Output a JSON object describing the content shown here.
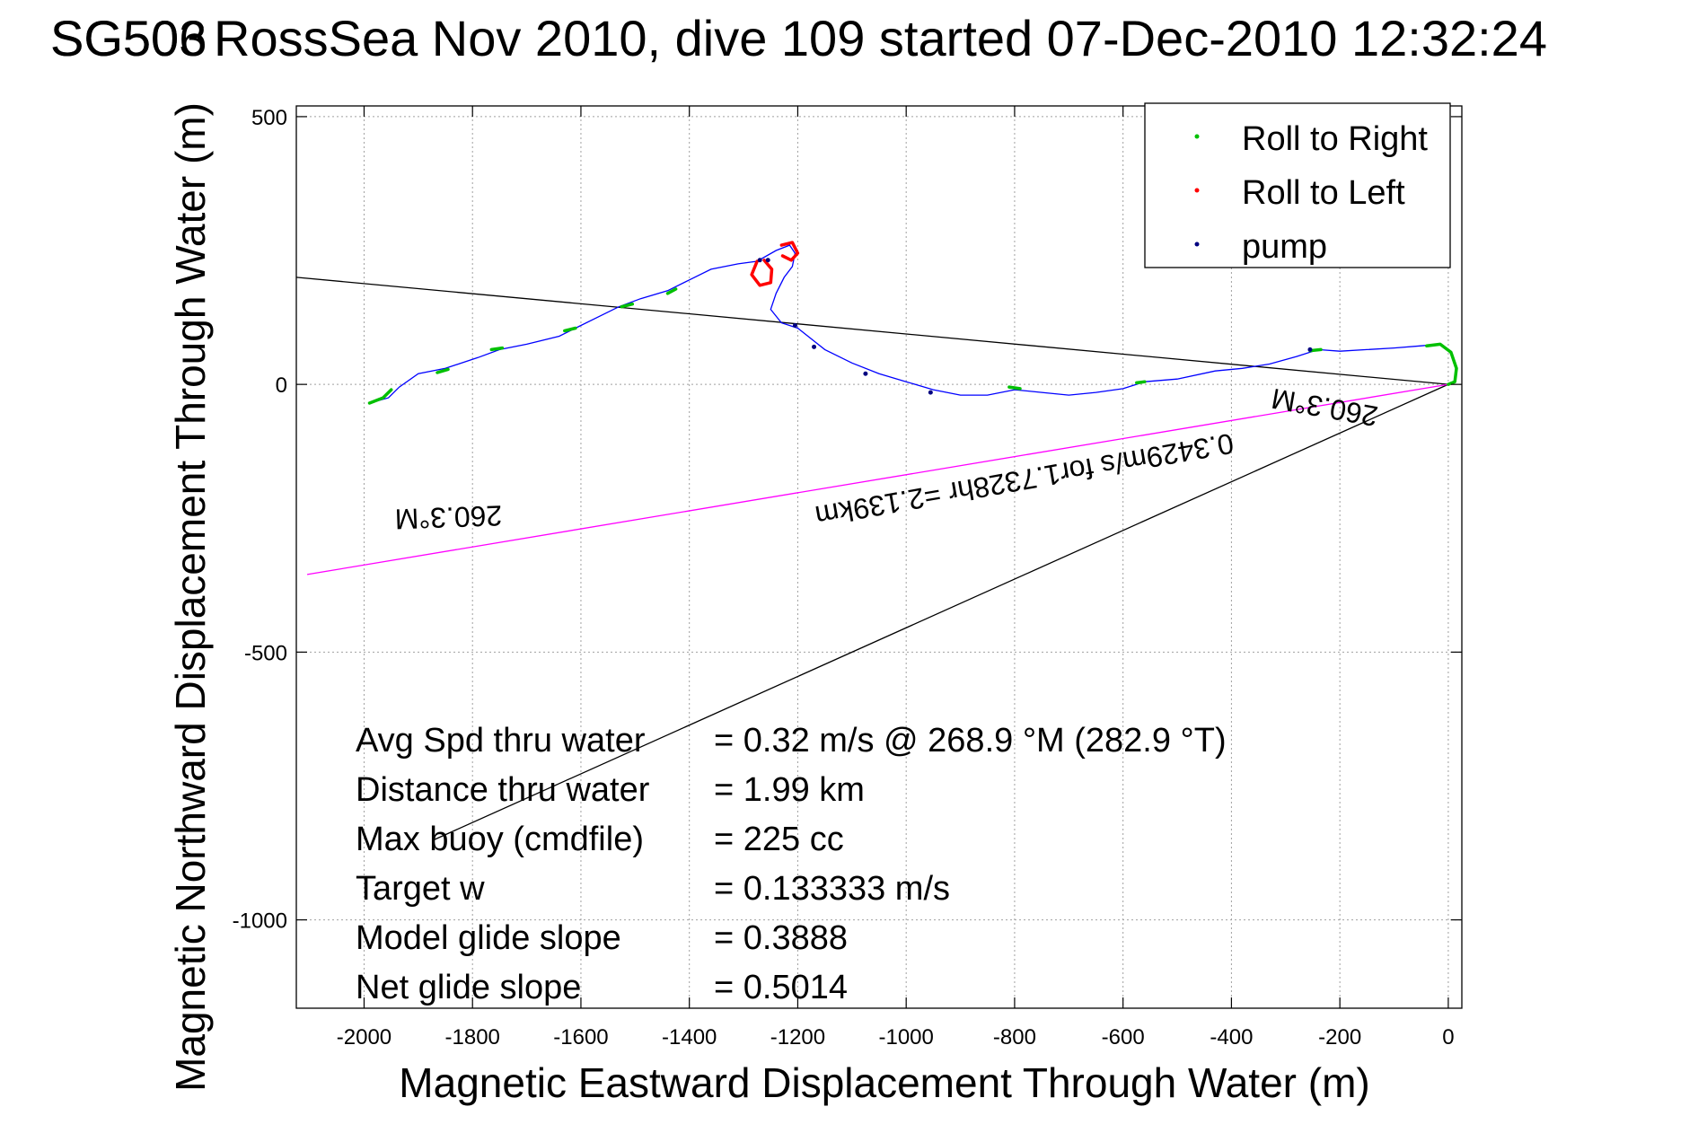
{
  "chart_data": {
    "type": "line",
    "title_a": "SG503",
    "title_b": "SG506",
    "title_rest": " RossSea Nov 2010, dive 109 started 07-Dec-2010 12:32:24",
    "xlabel": "Magnetic Eastward Displacement Through Water (m)",
    "ylabel": "Magnetic Northward Displacement Through Water (m)",
    "xlim": [
      -2125,
      25
    ],
    "ylim": [
      -1165,
      520
    ],
    "xticks": [
      -2000,
      -1800,
      -1600,
      -1400,
      -1200,
      -1000,
      -800,
      -600,
      -400,
      -200,
      0
    ],
    "yticks": [
      500,
      0,
      -500,
      -1000
    ],
    "grid": true,
    "legend_position": "top-right",
    "legend": [
      {
        "label": "Roll to Right",
        "color": "#00c000"
      },
      {
        "label": "Roll to Left",
        "color": "#ff0000"
      },
      {
        "label": "pump",
        "color": "#000080"
      }
    ],
    "track": {
      "name": "track",
      "color": "#0000ff",
      "points": [
        [
          -1990,
          -35
        ],
        [
          -1955,
          -25
        ],
        [
          -1935,
          -5
        ],
        [
          -1900,
          20
        ],
        [
          -1850,
          30
        ],
        [
          -1790,
          50
        ],
        [
          -1750,
          65
        ],
        [
          -1700,
          75
        ],
        [
          -1640,
          90
        ],
        [
          -1610,
          105
        ],
        [
          -1570,
          125
        ],
        [
          -1530,
          145
        ],
        [
          -1490,
          160
        ],
        [
          -1440,
          175
        ],
        [
          -1400,
          195
        ],
        [
          -1360,
          215
        ],
        [
          -1310,
          225
        ],
        [
          -1275,
          230
        ],
        [
          -1240,
          250
        ],
        [
          -1215,
          260
        ],
        [
          -1205,
          245
        ],
        [
          -1210,
          220
        ],
        [
          -1225,
          200
        ],
        [
          -1240,
          170
        ],
        [
          -1250,
          140
        ],
        [
          -1230,
          115
        ],
        [
          -1200,
          105
        ],
        [
          -1150,
          65
        ],
        [
          -1100,
          40
        ],
        [
          -1050,
          20
        ],
        [
          -1000,
          5
        ],
        [
          -950,
          -10
        ],
        [
          -900,
          -20
        ],
        [
          -850,
          -20
        ],
        [
          -800,
          -10
        ],
        [
          -750,
          -15
        ],
        [
          -700,
          -20
        ],
        [
          -650,
          -15
        ],
        [
          -600,
          -8
        ],
        [
          -560,
          5
        ],
        [
          -500,
          10
        ],
        [
          -430,
          25
        ],
        [
          -380,
          30
        ],
        [
          -330,
          38
        ],
        [
          -280,
          52
        ],
        [
          -240,
          65
        ],
        [
          -200,
          62
        ],
        [
          -150,
          65
        ],
        [
          -100,
          68
        ],
        [
          -50,
          72
        ],
        [
          -15,
          75
        ],
        [
          5,
          60
        ],
        [
          15,
          30
        ],
        [
          12,
          5
        ],
        [
          0,
          0
        ]
      ]
    },
    "roll_right_segments": [
      [
        [
          -1990,
          -35
        ],
        [
          -1965,
          -25
        ],
        [
          -1950,
          -10
        ]
      ],
      [
        [
          -1865,
          22
        ],
        [
          -1845,
          28
        ]
      ],
      [
        [
          -1765,
          65
        ],
        [
          -1745,
          68
        ]
      ],
      [
        [
          -1630,
          100
        ],
        [
          -1610,
          105
        ]
      ],
      [
        [
          -1525,
          145
        ],
        [
          -1505,
          150
        ]
      ],
      [
        [
          -1440,
          170
        ],
        [
          -1425,
          178
        ]
      ],
      [
        [
          -810,
          -5
        ],
        [
          -790,
          -8
        ]
      ],
      [
        [
          -575,
          3
        ],
        [
          -560,
          5
        ]
      ],
      [
        [
          -255,
          63
        ],
        [
          -235,
          65
        ]
      ],
      [
        [
          -40,
          72
        ],
        [
          -15,
          75
        ],
        [
          5,
          60
        ],
        [
          15,
          30
        ],
        [
          12,
          5
        ],
        [
          0,
          0
        ]
      ]
    ],
    "roll_left_segments": [
      [
        [
          -1275,
          230
        ],
        [
          -1285,
          205
        ],
        [
          -1270,
          185
        ],
        [
          -1250,
          190
        ],
        [
          -1248,
          215
        ],
        [
          -1262,
          232
        ]
      ],
      [
        [
          -1230,
          260
        ],
        [
          -1210,
          265
        ],
        [
          -1200,
          245
        ],
        [
          -1212,
          232
        ],
        [
          -1228,
          240
        ]
      ]
    ],
    "pump_points": [
      [
        -1270,
        232
      ],
      [
        -1255,
        232
      ],
      [
        -1205,
        110
      ],
      [
        -1170,
        70
      ],
      [
        -1075,
        20
      ],
      [
        -955,
        -15
      ],
      [
        -255,
        65
      ]
    ],
    "lines": [
      {
        "name": "black-line-1",
        "color": "#000000",
        "from": [
          -2125,
          200
        ],
        "to": [
          0,
          0
        ]
      },
      {
        "name": "black-line-2",
        "color": "#000000",
        "from": [
          -1870,
          -850
        ],
        "to": [
          0,
          0
        ]
      },
      {
        "name": "magenta-line",
        "color": "#ff00ff",
        "from": [
          -2105,
          -355
        ],
        "to": [
          0,
          0
        ]
      }
    ],
    "annotations": [
      {
        "text": "260.3°M",
        "x": -1845,
        "y": -230,
        "angle": 178
      },
      {
        "text": "0.3429m/s for1.7328hr =2.139km",
        "x": -785,
        "y": -160,
        "angle": 170
      },
      {
        "text": "260.3°M",
        "x": -225,
        "y": -25,
        "angle": 190
      }
    ],
    "stats": [
      {
        "label": "Avg Spd thru water",
        "value": "=  0.32 m/s @ 268.9 °M (282.9 °T)"
      },
      {
        "label": "Distance thru water",
        "value": "=  1.99 km"
      },
      {
        "label": "Max buoy (cmdfile)",
        "value": "= 225 cc"
      },
      {
        "label": "Target w",
        "value": "= 0.133333 m/s"
      },
      {
        "label": "Model glide slope",
        "value": "= 0.3888"
      },
      {
        "label": "Net glide slope",
        "value": "= 0.5014"
      }
    ]
  }
}
